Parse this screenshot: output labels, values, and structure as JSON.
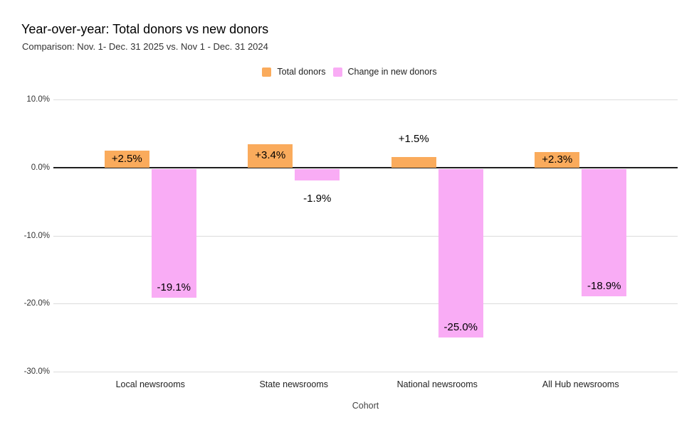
{
  "chart_data": {
    "type": "bar",
    "title": "Year-over-year: Total donors vs new donors",
    "subtitle": "Comparison: Nov. 1- Dec. 31 2025 vs. Nov 1 - Dec. 31 2024",
    "categories": [
      "Local newsrooms",
      "State newsrooms",
      "National newsrooms",
      "All Hub newsrooms"
    ],
    "series": [
      {
        "name": "Total donors",
        "color": "#FAAB5C",
        "values": [
          2.5,
          3.4,
          1.5,
          2.3
        ],
        "labels": [
          "+2.5%",
          "+3.4%",
          "+1.5%",
          "+2.3%"
        ]
      },
      {
        "name": "Change in new donors",
        "color": "#F9ACF5",
        "values": [
          -19.1,
          -1.9,
          -25.0,
          -18.9
        ],
        "labels": [
          "-19.1%",
          "-1.9%",
          "-25.0%",
          "-18.9%"
        ]
      }
    ],
    "xlabel": "Cohort",
    "ylabel": "",
    "ylim": [
      -30,
      10
    ],
    "yticks": [
      10,
      0,
      -10,
      -20,
      -30
    ],
    "ytick_labels": [
      "10.0%",
      "0.0%",
      "-10.0%",
      "-20.0%",
      "-30.0%"
    ],
    "grid": true,
    "legend_position": "top-center",
    "grid_color": "#dcdcdc",
    "zero_line_color": "#1f1f1f",
    "label_text_color": "#000000"
  }
}
